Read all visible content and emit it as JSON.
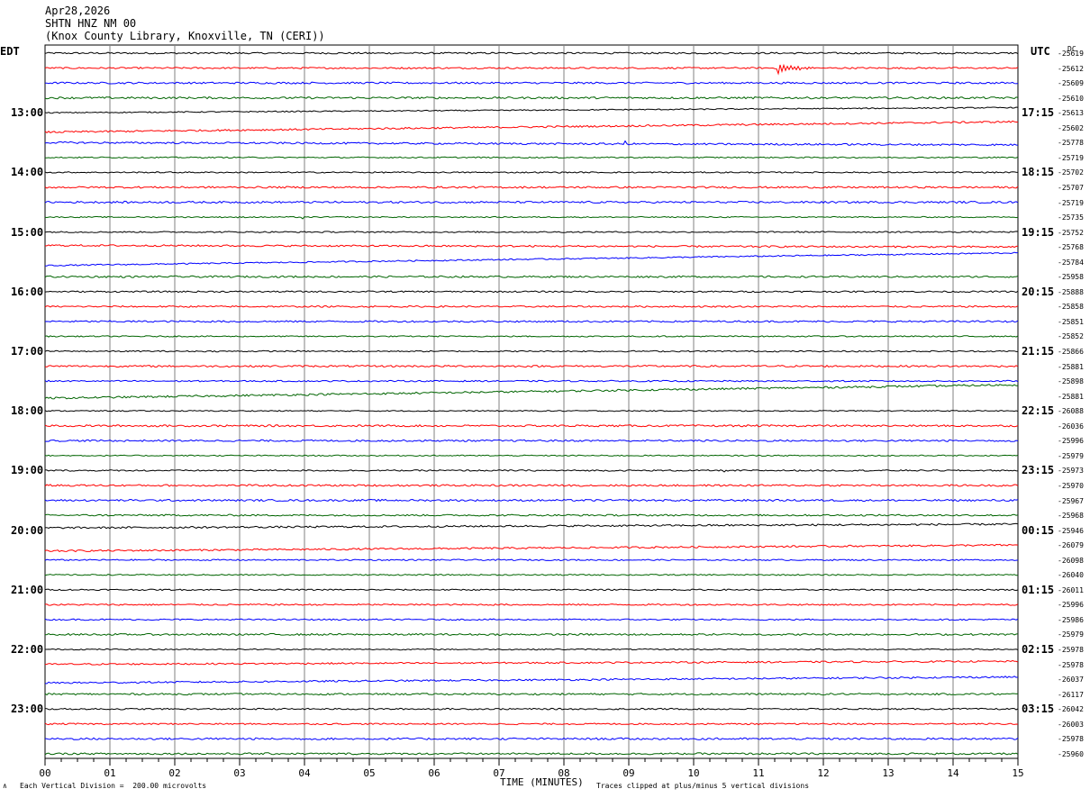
{
  "header": {
    "date": "Apr28,2026",
    "station": "SHTN HNZ NM 00",
    "location": "(Knox County Library, Knoxville, TN (CERI))"
  },
  "left_zone": "EDT",
  "right_zone": "UTC",
  "dc_label": "DC",
  "footer": {
    "scale_note": "Each Vertical Division =  200.00 microvolts",
    "x_title": "TIME (MINUTES)",
    "clip_note": "Traces clipped at plus/minus 5 vertical divisions",
    "corner_mark": "∧"
  },
  "colors": {
    "trace_cycle": [
      "#000000",
      "#ff0000",
      "#0000ff",
      "#006400"
    ],
    "grid": "#808080"
  },
  "chart_data": {
    "type": "line",
    "title": "",
    "xlabel": "TIME (MINUTES)",
    "ylabel": "",
    "xlim": [
      0,
      15
    ],
    "x_ticks": [
      "00",
      "01",
      "02",
      "03",
      "04",
      "05",
      "06",
      "07",
      "08",
      "09",
      "10",
      "11",
      "12",
      "13",
      "14",
      "15"
    ],
    "minor_tick_step": 0.25,
    "row_count": 48,
    "left_time_labels": [
      {
        "row": 4,
        "text": "13:00"
      },
      {
        "row": 8,
        "text": "14:00"
      },
      {
        "row": 12,
        "text": "15:00"
      },
      {
        "row": 16,
        "text": "16:00"
      },
      {
        "row": 20,
        "text": "17:00"
      },
      {
        "row": 24,
        "text": "18:00"
      },
      {
        "row": 28,
        "text": "19:00"
      },
      {
        "row": 32,
        "text": "20:00"
      },
      {
        "row": 36,
        "text": "21:00"
      },
      {
        "row": 40,
        "text": "22:00"
      },
      {
        "row": 44,
        "text": "23:00"
      }
    ],
    "right_time_labels": [
      {
        "row": 4,
        "text": "17:15"
      },
      {
        "row": 8,
        "text": "18:15"
      },
      {
        "row": 12,
        "text": "19:15"
      },
      {
        "row": 16,
        "text": "20:15"
      },
      {
        "row": 20,
        "text": "21:15"
      },
      {
        "row": 24,
        "text": "22:15"
      },
      {
        "row": 28,
        "text": "23:15"
      },
      {
        "row": 32,
        "text": "00:15"
      },
      {
        "row": 36,
        "text": "01:15"
      },
      {
        "row": 40,
        "text": "02:15"
      },
      {
        "row": 44,
        "text": "03:15"
      }
    ],
    "dc_offsets": [
      "-25619",
      "-25612",
      "-25609",
      "-25610",
      "-25613",
      "-25602",
      "-25778",
      "-25719",
      "-25702",
      "-25707",
      "-25719",
      "-25735",
      "-25752",
      "-25768",
      "-25784",
      "-25958",
      "-25888",
      "-25858",
      "-25851",
      "-25852",
      "-25866",
      "-25881",
      "-25898",
      "-25881",
      "-26088",
      "-26036",
      "-25996",
      "-25979",
      "-25973",
      "-25970",
      "-25967",
      "-25968",
      "-25946",
      "-26079",
      "-26098",
      "-26040",
      "-26011",
      "-25996",
      "-25986",
      "-25979",
      "-25978",
      "-25978",
      "-26037",
      "-26117",
      "-26042",
      "-26003",
      "-25978",
      "-25960"
    ],
    "events": [
      {
        "row": 1,
        "minute": 11.3,
        "duration": 0.8,
        "amplitude": 1.5,
        "label": ""
      },
      {
        "row": 6,
        "minute": 8.92,
        "duration": 0.05,
        "amplitude": 3.0,
        "label": ""
      },
      {
        "row": 11,
        "minute": 3.95,
        "duration": 0.1,
        "amplitude": 1.0,
        "label": ""
      },
      {
        "row": 11,
        "minute": 2.95,
        "duration": 0.05,
        "amplitude": 0.6,
        "label": ""
      },
      {
        "row": 28,
        "minute": 10.45,
        "duration": 0.3,
        "amplitude": 0.4,
        "label": ""
      }
    ],
    "drift_segments": [
      {
        "row": 4,
        "start": [
          0,
          0
        ],
        "end": [
          15,
          0.7
        ]
      },
      {
        "row": 5,
        "start": [
          0,
          -0.6
        ],
        "end": [
          15,
          0.8
        ]
      },
      {
        "row": 6,
        "start": [
          0,
          0
        ],
        "end": [
          15,
          -0.3
        ]
      },
      {
        "row": 12,
        "start": [
          0,
          0
        ],
        "end": [
          15,
          0
        ]
      },
      {
        "row": 13,
        "start": [
          0,
          0.2
        ],
        "end": [
          15,
          0
        ]
      },
      {
        "row": 14,
        "start": [
          0,
          -0.5
        ],
        "end": [
          15,
          1.2
        ]
      },
      {
        "row": 22,
        "start": [
          0,
          0
        ],
        "end": [
          15,
          0
        ]
      },
      {
        "row": 23,
        "start": [
          0,
          -0.3
        ],
        "end": [
          15,
          1.5
        ]
      },
      {
        "row": 32,
        "start": [
          0,
          0.3
        ],
        "end": [
          15,
          0.8
        ]
      },
      {
        "row": 33,
        "start": [
          0,
          -0.8
        ],
        "end": [
          15,
          0
        ]
      },
      {
        "row": 41,
        "start": [
          0,
          0
        ],
        "end": [
          15,
          0.4
        ]
      },
      {
        "row": 42,
        "start": [
          0,
          -0.5
        ],
        "end": [
          15,
          0.3
        ]
      }
    ]
  }
}
